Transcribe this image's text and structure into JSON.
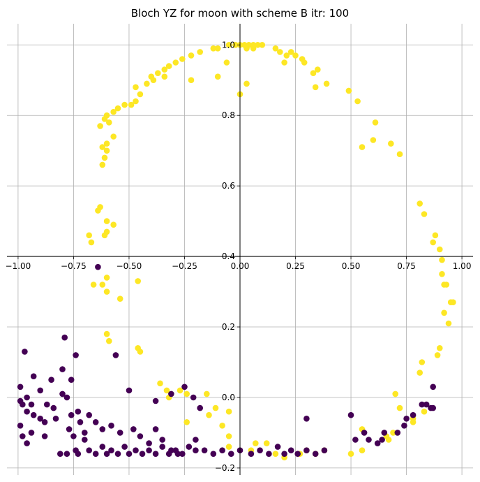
{
  "chart_data": {
    "type": "scatter",
    "title": "Bloch YZ for moon with scheme B itr: 100",
    "xlabel": "",
    "ylabel": "",
    "xlim": [
      -1.05,
      1.05
    ],
    "ylim": [
      -0.22,
      1.06
    ],
    "x_ticks": [
      -1.0,
      -0.75,
      -0.5,
      -0.25,
      0.0,
      0.25,
      0.5,
      0.75,
      1.0
    ],
    "x_tick_labels": [
      "−1.00",
      "−0.75",
      "−0.50",
      "−0.25",
      "0.00",
      "0.25",
      "0.50",
      "0.75",
      "1.00"
    ],
    "y_ticks": [
      -0.2,
      0.0,
      0.2,
      0.4,
      0.6,
      0.8,
      1.0
    ],
    "y_tick_labels": [
      "−0.2",
      "0.0",
      "0.2",
      "0.4",
      "0.6",
      "0.8",
      "1.0"
    ],
    "grid": true,
    "spines": "center",
    "legend": "none",
    "colors": {
      "class_0": "#440154",
      "class_1": "#fde725"
    },
    "series": [
      {
        "color": "#fde725",
        "points": [
          [
            -0.12,
            0.99
          ],
          [
            -0.1,
            0.99
          ],
          [
            -0.05,
            1.0
          ],
          [
            -0.02,
            1.0
          ],
          [
            0.0,
            1.0
          ],
          [
            0.02,
            1.0
          ],
          [
            0.04,
            1.0
          ],
          [
            0.06,
            1.0
          ],
          [
            0.08,
            1.0
          ],
          [
            0.1,
            1.0
          ],
          [
            0.03,
            0.99
          ],
          [
            0.06,
            0.99
          ],
          [
            0.0,
            0.86
          ],
          [
            0.03,
            0.89
          ],
          [
            -0.06,
            0.95
          ],
          [
            -0.1,
            0.91
          ],
          [
            -0.18,
            0.98
          ],
          [
            -0.22,
            0.97
          ],
          [
            -0.26,
            0.96
          ],
          [
            -0.29,
            0.95
          ],
          [
            -0.32,
            0.94
          ],
          [
            -0.34,
            0.93
          ],
          [
            -0.37,
            0.92
          ],
          [
            -0.4,
            0.91
          ],
          [
            -0.42,
            0.89
          ],
          [
            -0.45,
            0.86
          ],
          [
            -0.47,
            0.84
          ],
          [
            -0.49,
            0.83
          ],
          [
            -0.52,
            0.83
          ],
          [
            -0.55,
            0.82
          ],
          [
            -0.57,
            0.81
          ],
          [
            -0.6,
            0.8
          ],
          [
            -0.61,
            0.79
          ],
          [
            -0.59,
            0.78
          ],
          [
            -0.63,
            0.77
          ],
          [
            -0.57,
            0.74
          ],
          [
            -0.62,
            0.71
          ],
          [
            -0.6,
            0.72
          ],
          [
            -0.6,
            0.7
          ],
          [
            -0.61,
            0.68
          ],
          [
            -0.62,
            0.66
          ],
          [
            -0.34,
            0.91
          ],
          [
            -0.39,
            0.9
          ],
          [
            -0.47,
            0.88
          ],
          [
            -0.22,
            0.9
          ],
          [
            -0.63,
            0.54
          ],
          [
            -0.64,
            0.53
          ],
          [
            -0.6,
            0.5
          ],
          [
            -0.57,
            0.49
          ],
          [
            -0.6,
            0.47
          ],
          [
            -0.61,
            0.46
          ],
          [
            -0.68,
            0.46
          ],
          [
            -0.67,
            0.44
          ],
          [
            -0.66,
            0.32
          ],
          [
            -0.62,
            0.32
          ],
          [
            -0.6,
            0.34
          ],
          [
            -0.6,
            0.3
          ],
          [
            -0.54,
            0.28
          ],
          [
            -0.46,
            0.33
          ],
          [
            -0.6,
            0.18
          ],
          [
            -0.59,
            0.16
          ],
          [
            -0.46,
            0.14
          ],
          [
            -0.45,
            0.13
          ],
          [
            0.16,
            0.99
          ],
          [
            0.18,
            0.98
          ],
          [
            0.21,
            0.97
          ],
          [
            0.23,
            0.98
          ],
          [
            0.25,
            0.97
          ],
          [
            0.28,
            0.96
          ],
          [
            0.29,
            0.95
          ],
          [
            0.2,
            0.95
          ],
          [
            0.33,
            0.92
          ],
          [
            0.35,
            0.93
          ],
          [
            0.34,
            0.88
          ],
          [
            0.39,
            0.89
          ],
          [
            0.49,
            0.87
          ],
          [
            0.53,
            0.84
          ],
          [
            0.61,
            0.78
          ],
          [
            0.6,
            0.73
          ],
          [
            0.55,
            0.71
          ],
          [
            0.68,
            0.72
          ],
          [
            0.72,
            0.69
          ],
          [
            0.81,
            0.55
          ],
          [
            0.83,
            0.52
          ],
          [
            0.88,
            0.46
          ],
          [
            0.87,
            0.44
          ],
          [
            0.9,
            0.42
          ],
          [
            0.91,
            0.39
          ],
          [
            0.91,
            0.35
          ],
          [
            0.92,
            0.32
          ],
          [
            0.93,
            0.32
          ],
          [
            0.95,
            0.27
          ],
          [
            0.96,
            0.27
          ],
          [
            0.92,
            0.24
          ],
          [
            0.94,
            0.21
          ],
          [
            0.9,
            0.14
          ],
          [
            0.89,
            0.12
          ],
          [
            0.82,
            0.1
          ],
          [
            0.81,
            0.07
          ],
          [
            0.7,
            0.01
          ],
          [
            0.72,
            -0.03
          ],
          [
            0.83,
            -0.04
          ],
          [
            0.78,
            -0.06
          ],
          [
            0.78,
            -0.07
          ],
          [
            0.69,
            -0.1
          ],
          [
            0.66,
            -0.11
          ],
          [
            0.67,
            -0.12
          ],
          [
            0.55,
            -0.09
          ],
          [
            0.55,
            -0.15
          ],
          [
            0.5,
            -0.16
          ],
          [
            0.38,
            -0.15
          ],
          [
            0.34,
            -0.16
          ],
          [
            0.3,
            -0.15
          ],
          [
            0.27,
            -0.16
          ],
          [
            0.2,
            -0.17
          ],
          [
            0.16,
            -0.16
          ],
          [
            0.12,
            -0.13
          ],
          [
            0.07,
            -0.13
          ],
          [
            0.05,
            -0.15
          ],
          [
            -0.05,
            -0.14
          ],
          [
            -0.05,
            -0.11
          ],
          [
            -0.11,
            -0.03
          ],
          [
            -0.14,
            -0.05
          ],
          [
            -0.08,
            -0.08
          ],
          [
            -0.05,
            -0.04
          ],
          [
            -0.15,
            0.01
          ],
          [
            -0.24,
            -0.07
          ],
          [
            -0.24,
            0.01
          ],
          [
            -0.27,
            0.02
          ],
          [
            -0.33,
            0.02
          ],
          [
            -0.36,
            0.04
          ],
          [
            -0.32,
            0.0
          ]
        ]
      },
      {
        "color": "#440154",
        "points": [
          [
            -0.64,
            0.37
          ],
          [
            -0.56,
            0.12
          ],
          [
            -0.74,
            0.12
          ],
          [
            -0.79,
            0.17
          ],
          [
            -0.97,
            0.13
          ],
          [
            -0.93,
            0.06
          ],
          [
            -0.85,
            0.05
          ],
          [
            -0.8,
            0.08
          ],
          [
            -0.76,
            0.05
          ],
          [
            -0.99,
            0.03
          ],
          [
            -0.96,
            0.0
          ],
          [
            -0.94,
            -0.02
          ],
          [
            -0.9,
            0.02
          ],
          [
            -0.87,
            -0.02
          ],
          [
            -0.84,
            -0.03
          ],
          [
            -0.8,
            0.01
          ],
          [
            -0.78,
            0.0
          ],
          [
            -0.99,
            -0.01
          ],
          [
            -0.98,
            -0.02
          ],
          [
            -0.96,
            -0.04
          ],
          [
            -0.93,
            -0.05
          ],
          [
            -0.9,
            -0.06
          ],
          [
            -0.88,
            -0.07
          ],
          [
            -0.83,
            -0.06
          ],
          [
            -0.76,
            -0.05
          ],
          [
            -0.73,
            -0.04
          ],
          [
            -0.99,
            -0.08
          ],
          [
            -0.98,
            -0.11
          ],
          [
            -0.96,
            -0.13
          ],
          [
            -0.94,
            -0.1
          ],
          [
            -0.88,
            -0.11
          ],
          [
            -0.77,
            -0.09
          ],
          [
            -0.75,
            -0.11
          ],
          [
            -0.7,
            -0.1
          ],
          [
            -0.72,
            -0.07
          ],
          [
            -0.68,
            -0.05
          ],
          [
            -0.65,
            -0.07
          ],
          [
            -0.62,
            -0.09
          ],
          [
            -0.58,
            -0.08
          ],
          [
            -0.54,
            -0.1
          ],
          [
            -0.48,
            -0.09
          ],
          [
            -0.45,
            -0.11
          ],
          [
            -0.41,
            -0.13
          ],
          [
            -0.38,
            -0.09
          ],
          [
            -0.35,
            -0.12
          ],
          [
            -0.31,
            -0.15
          ],
          [
            -0.28,
            -0.16
          ],
          [
            -0.23,
            -0.14
          ],
          [
            -0.2,
            -0.12
          ],
          [
            -0.16,
            -0.15
          ],
          [
            -0.12,
            -0.16
          ],
          [
            -0.08,
            -0.15
          ],
          [
            -0.04,
            -0.16
          ],
          [
            0.0,
            -0.15
          ],
          [
            0.05,
            -0.16
          ],
          [
            0.09,
            -0.15
          ],
          [
            0.13,
            -0.16
          ],
          [
            0.17,
            -0.14
          ],
          [
            0.2,
            -0.16
          ],
          [
            0.23,
            -0.15
          ],
          [
            0.26,
            -0.16
          ],
          [
            0.3,
            -0.15
          ],
          [
            -0.7,
            -0.12
          ],
          [
            -0.68,
            -0.15
          ],
          [
            -0.65,
            -0.16
          ],
          [
            -0.62,
            -0.14
          ],
          [
            -0.6,
            -0.16
          ],
          [
            -0.58,
            -0.15
          ],
          [
            -0.55,
            -0.16
          ],
          [
            -0.52,
            -0.14
          ],
          [
            -0.5,
            -0.16
          ],
          [
            -0.47,
            -0.15
          ],
          [
            -0.44,
            -0.16
          ],
          [
            -0.41,
            -0.15
          ],
          [
            -0.38,
            -0.16
          ],
          [
            -0.35,
            -0.14
          ],
          [
            -0.32,
            -0.16
          ],
          [
            -0.29,
            -0.15
          ],
          [
            -0.26,
            -0.16
          ],
          [
            -0.2,
            -0.15
          ],
          [
            -0.5,
            0.02
          ],
          [
            -0.38,
            -0.01
          ],
          [
            -0.31,
            0.01
          ],
          [
            -0.25,
            0.03
          ],
          [
            -0.21,
            0.0
          ],
          [
            -0.18,
            -0.03
          ],
          [
            0.3,
            -0.06
          ],
          [
            0.34,
            -0.16
          ],
          [
            0.38,
            -0.15
          ],
          [
            0.5,
            -0.05
          ],
          [
            0.52,
            -0.12
          ],
          [
            0.56,
            -0.1
          ],
          [
            0.58,
            -0.12
          ],
          [
            0.62,
            -0.13
          ],
          [
            0.64,
            -0.12
          ],
          [
            0.65,
            -0.1
          ],
          [
            0.71,
            -0.1
          ],
          [
            0.74,
            -0.08
          ],
          [
            0.75,
            -0.06
          ],
          [
            0.78,
            -0.05
          ],
          [
            0.82,
            -0.02
          ],
          [
            0.84,
            -0.02
          ],
          [
            0.86,
            -0.03
          ],
          [
            0.87,
            -0.03
          ],
          [
            0.87,
            0.03
          ],
          [
            -0.81,
            -0.16
          ],
          [
            -0.78,
            -0.16
          ],
          [
            -0.74,
            -0.15
          ],
          [
            -0.73,
            -0.16
          ]
        ]
      }
    ]
  }
}
